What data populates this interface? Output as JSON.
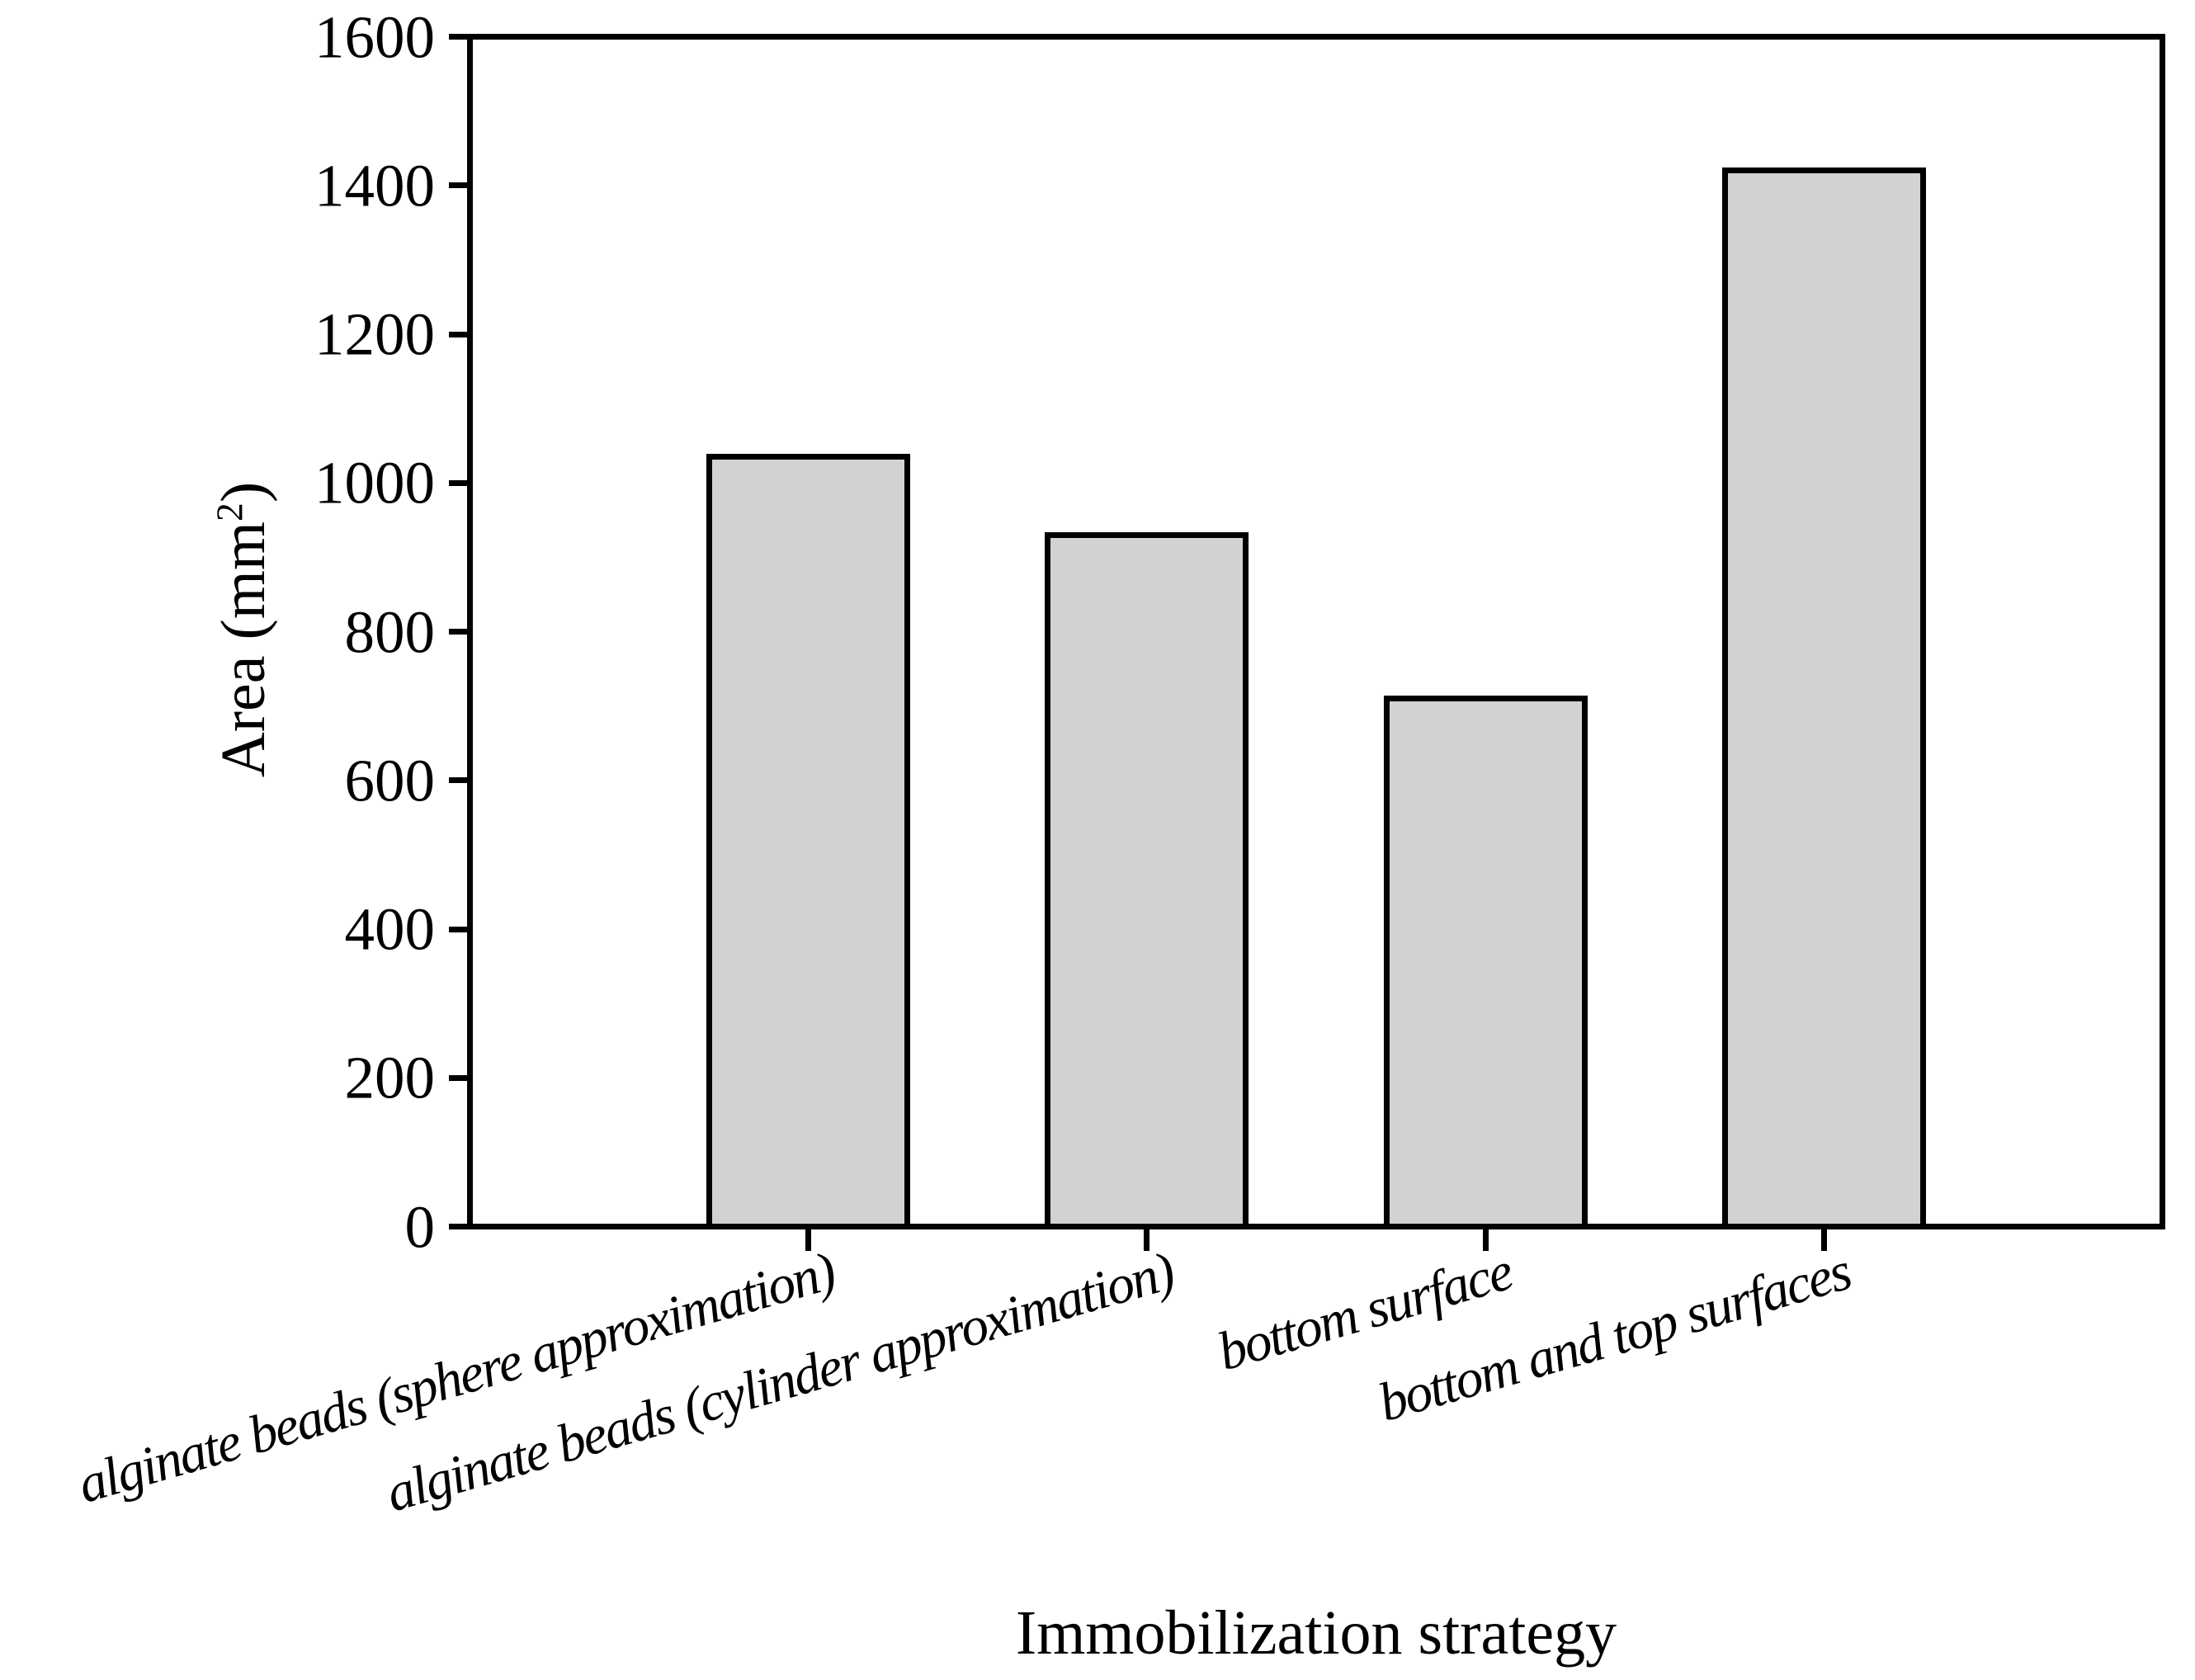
{
  "figure": {
    "background": "#ffffff",
    "line_color": "#000000"
  },
  "chart_data": {
    "type": "bar",
    "title": "",
    "categories": [
      "alginate beads (sphere approximation)",
      "alginate beads (cylinder approximation)",
      "bottom surface",
      "bottom and top surfaces"
    ],
    "values": [
      1035,
      930,
      710,
      1420
    ],
    "xlabel": "Immobilization strategy",
    "ylabel": {
      "pre": "Area (mm",
      "sup": "2",
      "post": ")"
    },
    "ylim": [
      0,
      1600
    ],
    "yticks": [
      0,
      200,
      400,
      600,
      800,
      1000,
      1200,
      1400,
      1600
    ],
    "grid": false,
    "legend": "none",
    "bar_fill": "#d2d2d2",
    "bar_stroke": "#000000"
  }
}
